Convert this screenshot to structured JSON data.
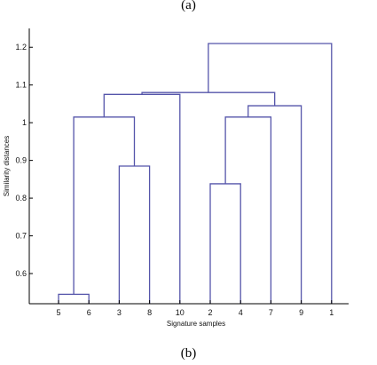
{
  "captions": {
    "top": "(a)",
    "bottom": "(b)"
  },
  "colors": {
    "link": "#5555aa",
    "axis": "#000000"
  },
  "chart_data": {
    "type": "dendrogram",
    "xlabel": "Signature samples",
    "ylabel": "Similarity distances",
    "ylim": [
      0.52,
      1.25
    ],
    "yticks": [
      0.6,
      0.7,
      0.8,
      0.9,
      1.0,
      1.1,
      1.2
    ],
    "ytick_labels": [
      "0.6",
      "0.7",
      "0.8",
      "0.9",
      "1",
      "1.1",
      "1.2"
    ],
    "leaves": [
      "5",
      "6",
      "3",
      "8",
      "10",
      "2",
      "4",
      "7",
      "9",
      "1"
    ],
    "merges": [
      {
        "left": "5",
        "right": "6",
        "height": 0.545
      },
      {
        "left": "2",
        "right": "4",
        "height": 0.838
      },
      {
        "left": "3",
        "right": "8",
        "height": 0.885
      },
      {
        "left": "{5,6}",
        "right": "{3,8}",
        "height": 1.015
      },
      {
        "left": "{2,4}",
        "right": "7",
        "height": 1.015
      },
      {
        "left": "{2,4,7}",
        "right": "9",
        "height": 1.045
      },
      {
        "left": "{5,6,3,8}",
        "right": "10",
        "height": 1.075
      },
      {
        "left": "{5,6,3,8,10}",
        "right": "{2,4,7,9}",
        "height": 1.08
      },
      {
        "left": "{5,6,3,8,10,2,4,7,9}",
        "right": "1",
        "height": 1.21
      }
    ]
  }
}
